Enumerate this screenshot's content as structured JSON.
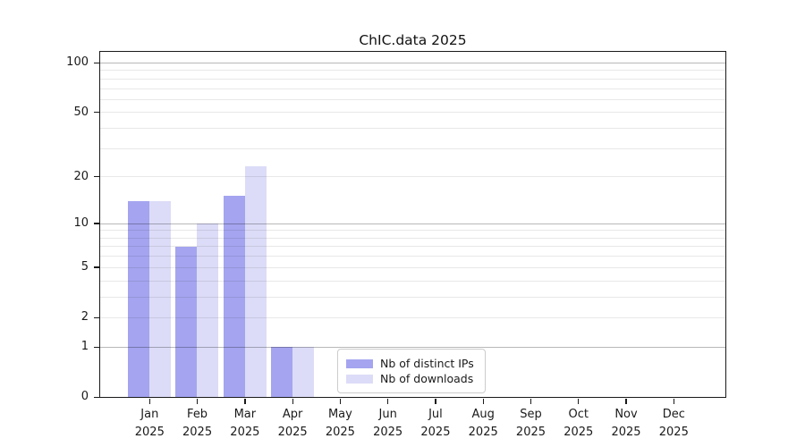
{
  "chart_data": {
    "type": "bar",
    "title": "ChIC.data 2025",
    "x_axis": {
      "categories": [
        "Jan",
        "Feb",
        "Mar",
        "Apr",
        "May",
        "Jun",
        "Jul",
        "Aug",
        "Sep",
        "Oct",
        "Nov",
        "Dec"
      ],
      "year_label": "2025"
    },
    "y_axis": {
      "scale": "log1p",
      "tick_labels": [
        "0",
        "1",
        "2",
        "5",
        "10",
        "20",
        "50",
        "100"
      ],
      "tick_values": [
        0,
        1,
        2,
        5,
        10,
        20,
        50,
        100
      ],
      "major_gridlines": [
        1,
        10,
        100
      ],
      "minor_gridlines": [
        2,
        3,
        4,
        5,
        6,
        7,
        8,
        9,
        20,
        30,
        40,
        50,
        60,
        70,
        80,
        90
      ],
      "ylim": [
        0,
        116
      ],
      "grid": "on"
    },
    "series": [
      {
        "name": "Nb of distinct IPs",
        "color": "#a4a4f0",
        "values": [
          14,
          7,
          15,
          1,
          0,
          0,
          0,
          0,
          0,
          0,
          0,
          0
        ]
      },
      {
        "name": "Nb of downloads",
        "color": "#dcdcf8",
        "values": [
          14,
          10,
          23,
          1,
          0,
          0,
          0,
          0,
          0,
          0,
          0,
          0
        ]
      }
    ],
    "legend": {
      "position": "inside-bottom-center",
      "entries": [
        "Nb of distinct IPs",
        "Nb of downloads"
      ]
    },
    "colors": {
      "spine": "#1a1a1a",
      "grid_major": "rgba(0,0,0,0.28)",
      "grid_minor": "rgba(0,0,0,0.09)",
      "background": "#ffffff"
    }
  }
}
